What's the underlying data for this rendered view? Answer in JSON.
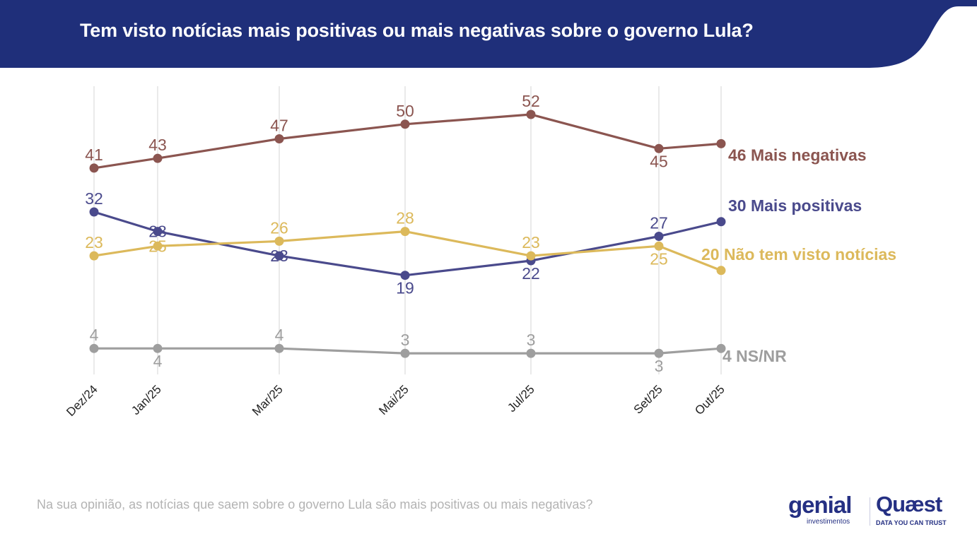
{
  "header": {
    "title": "Tem visto notícias mais positivas ou mais negativas sobre o governo Lula?",
    "color": "#1f2f7a"
  },
  "footer": {
    "question": "Na sua opinião, as notícias que saem sobre o governo Lula são mais positivas ou mais negativas?",
    "logo_genial": "genial",
    "logo_genial_sub": "investimentos",
    "logo_quaest": "Quæst",
    "logo_quaest_sub": "DATA YOU CAN TRUST"
  },
  "chart_data": {
    "type": "line",
    "title": "Tem visto notícias mais positivas ou mais negativas sobre o governo Lula?",
    "xlabel": "",
    "ylabel": "",
    "grid": "vertical",
    "categories": [
      "Dez/24",
      "Jan/25",
      "Mar/25",
      "Mai/25",
      "Jul/25",
      "Set/25",
      "Out/25"
    ],
    "x_positions_months": [
      0,
      1,
      3,
      5,
      7,
      9,
      10
    ],
    "ylim": [
      0,
      55
    ],
    "legend": "end-of-line labels (right)",
    "series": [
      {
        "name": "Mais negativas",
        "end_label": "46 Mais negativas",
        "color": "#8b5550",
        "values": [
          41,
          43,
          47,
          50,
          52,
          45,
          46
        ],
        "label_pos": [
          "above",
          "above",
          "above",
          "above",
          "above",
          "below",
          "none"
        ]
      },
      {
        "name": "Mais positivas",
        "end_label": "30 Mais positivas",
        "color": "#4a4a8c",
        "values": [
          32,
          28,
          23,
          19,
          22,
          27,
          30
        ],
        "label_pos": [
          "above",
          "on",
          "on",
          "below",
          "below",
          "above",
          "none"
        ]
      },
      {
        "name": "Não tem visto notícias",
        "end_label": "20 Não tem visto notícias",
        "color": "#dcb95b",
        "values": [
          23,
          25,
          26,
          28,
          23,
          25,
          20
        ],
        "label_pos": [
          "above",
          "on",
          "above",
          "above",
          "above",
          "below",
          "none"
        ]
      },
      {
        "name": "NS/NR",
        "end_label": "4 NS/NR",
        "color": "#9e9e9e",
        "values": [
          4,
          4,
          4,
          3,
          3,
          3,
          4
        ],
        "label_pos": [
          "above",
          "below",
          "above",
          "above",
          "above",
          "below",
          "none"
        ]
      }
    ]
  }
}
